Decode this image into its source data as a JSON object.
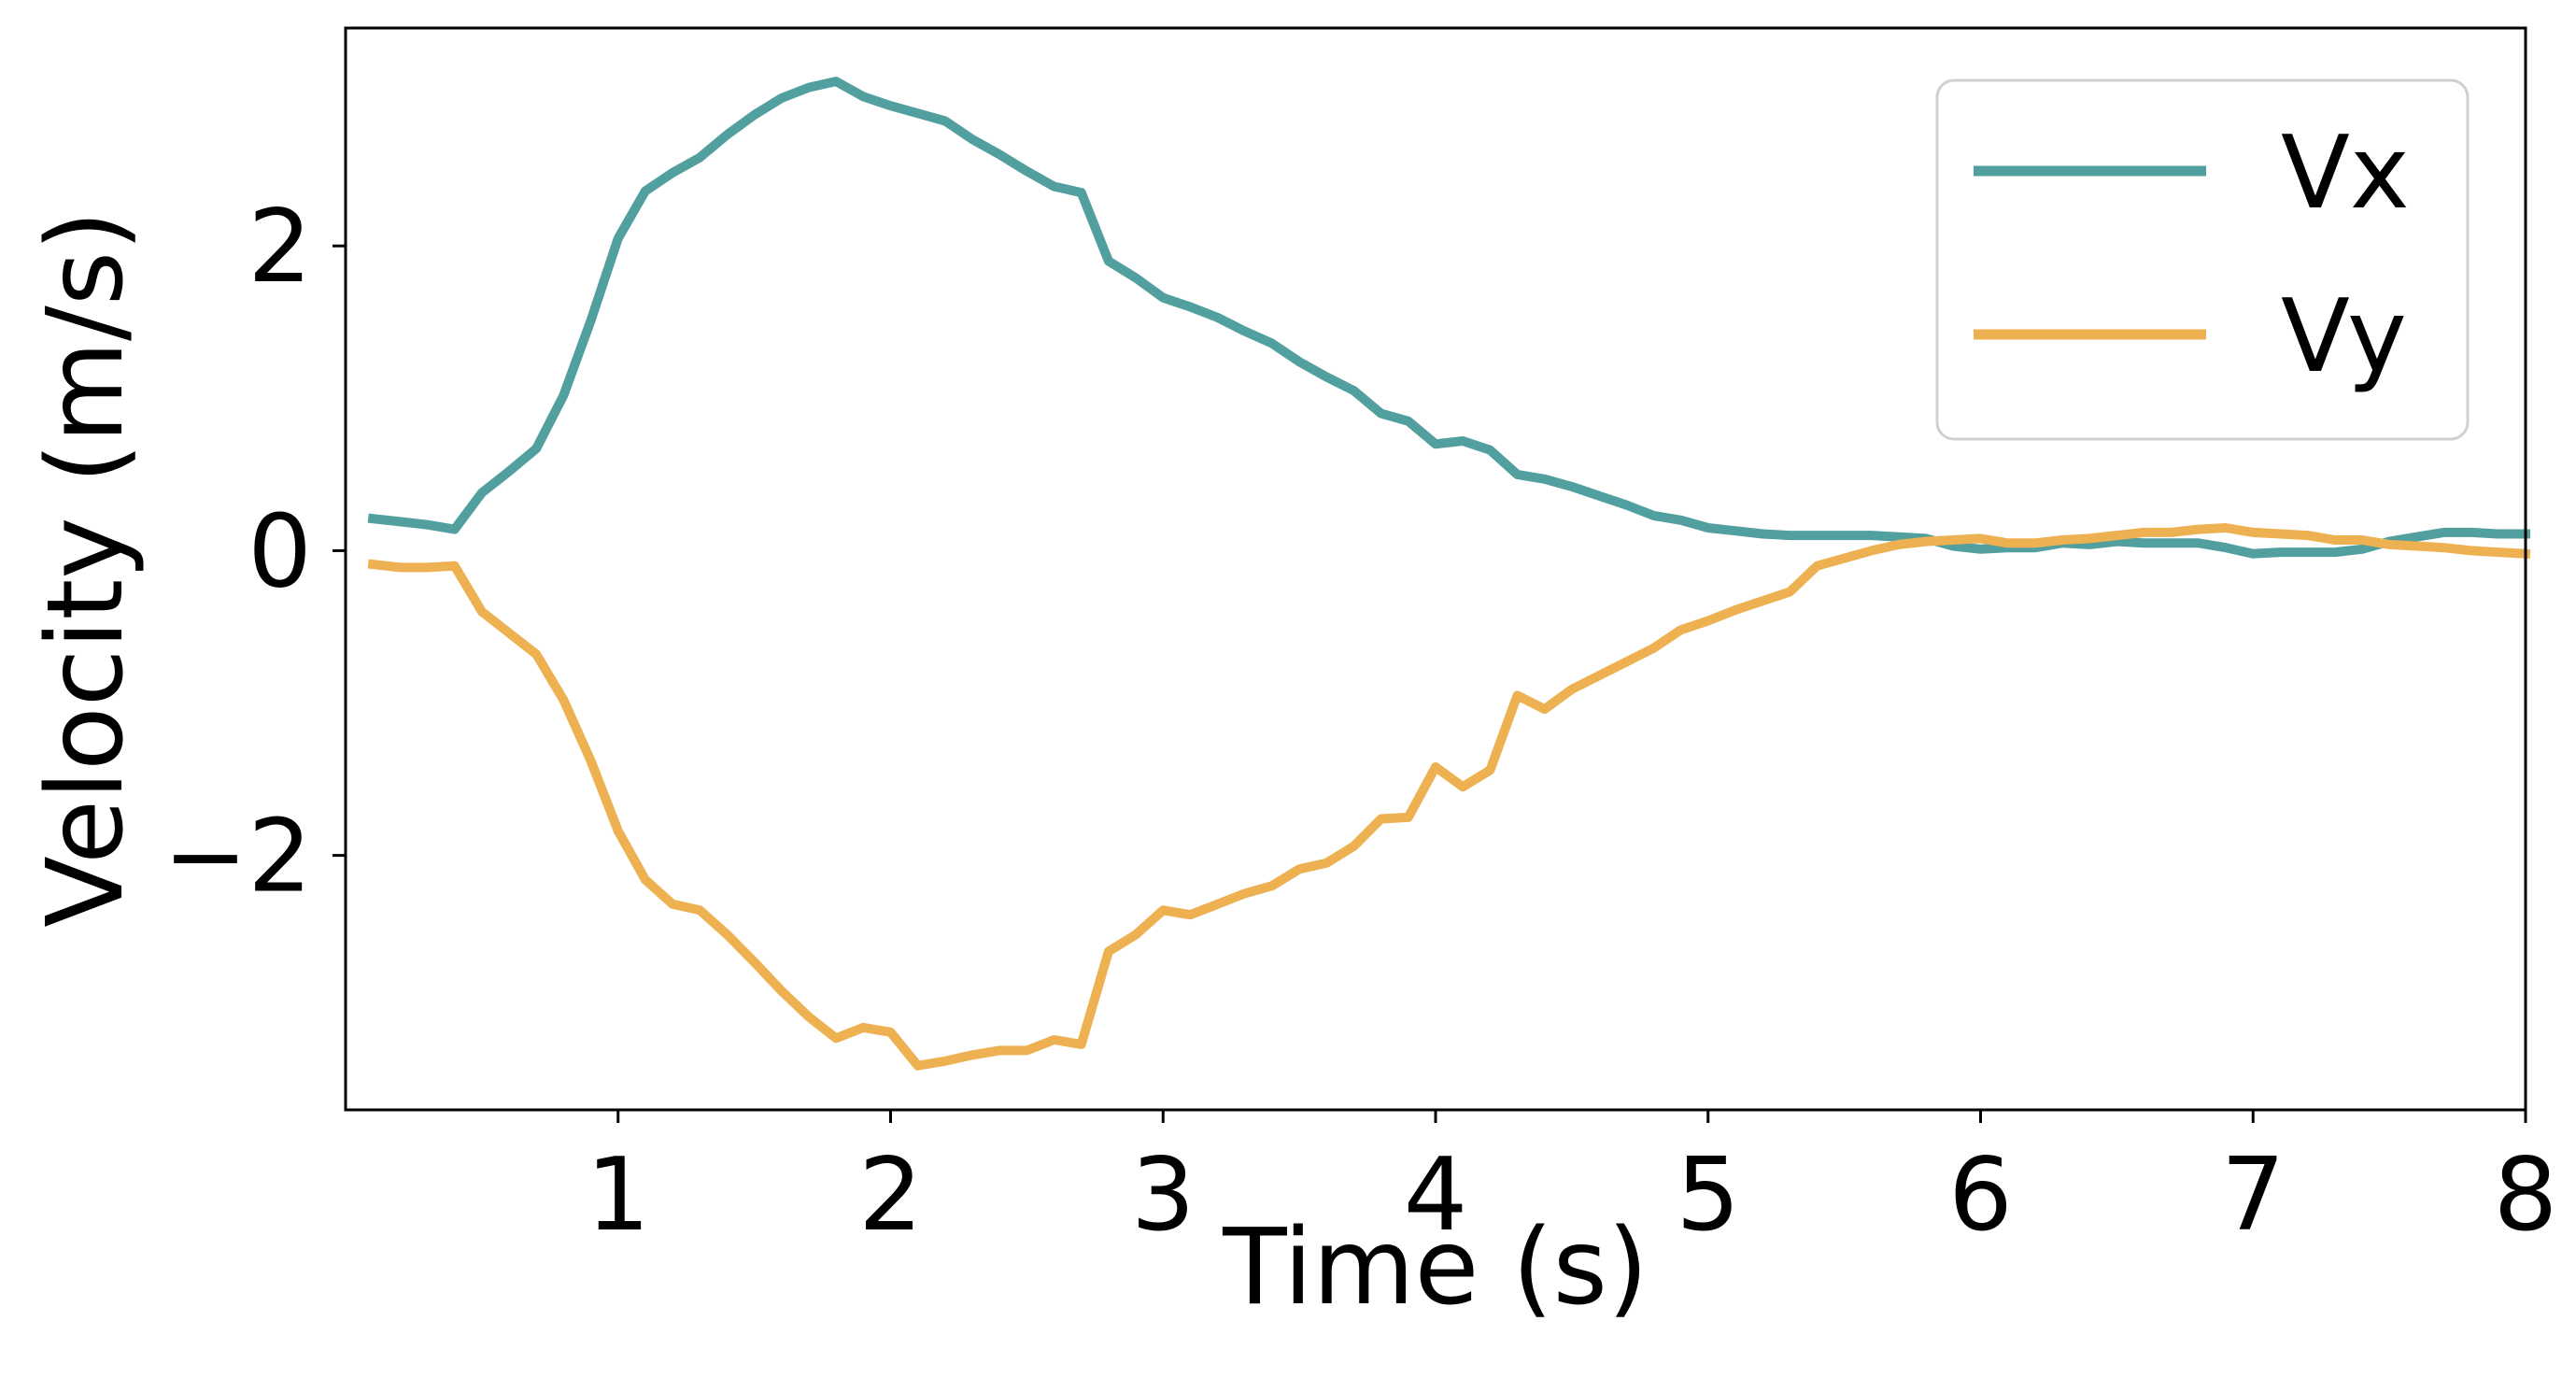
{
  "chart_data": {
    "type": "line",
    "xlabel": "Time (s)",
    "ylabel": "Velocity (m/s)",
    "xlim": [
      0,
      8
    ],
    "ylim": [
      -3.67,
      3.43
    ],
    "xticks": [
      "1",
      "2",
      "3",
      "4",
      "5",
      "6",
      "7",
      "8"
    ],
    "yticks": [
      "2",
      "0",
      "−2"
    ],
    "grid": false,
    "legend_position": "top-right",
    "series": [
      {
        "name": "Vx",
        "color": "#529f9f",
        "x": [
          0.1,
          0.2,
          0.3,
          0.4,
          0.5,
          0.6,
          0.7,
          0.8,
          0.9,
          1.0,
          1.1,
          1.2,
          1.3,
          1.4,
          1.5,
          1.6,
          1.7,
          1.8,
          1.9,
          2.0,
          2.1,
          2.2,
          2.3,
          2.4,
          2.5,
          2.6,
          2.7,
          2.8,
          2.9,
          3.0,
          3.1,
          3.2,
          3.3,
          3.4,
          3.5,
          3.6,
          3.7,
          3.8,
          3.9,
          4.0,
          4.1,
          4.2,
          4.3,
          4.4,
          4.5,
          4.6,
          4.7,
          4.8,
          4.9,
          5.0,
          5.1,
          5.2,
          5.3,
          5.4,
          5.5,
          5.6,
          5.7,
          5.8,
          5.9,
          6.0,
          6.1,
          6.2,
          6.3,
          6.4,
          6.5,
          6.6,
          6.7,
          6.8,
          6.9,
          7.0,
          7.1,
          7.2,
          7.3,
          7.4,
          7.5,
          7.6,
          7.7,
          7.8,
          7.9,
          8.0
        ],
        "values": [
          0.21,
          0.19,
          0.17,
          0.14,
          0.38,
          0.52,
          0.67,
          1.02,
          1.51,
          2.05,
          2.36,
          2.48,
          2.58,
          2.73,
          2.86,
          2.97,
          3.04,
          3.08,
          2.98,
          2.92,
          2.87,
          2.82,
          2.7,
          2.6,
          2.49,
          2.39,
          2.35,
          1.9,
          1.79,
          1.66,
          1.6,
          1.53,
          1.44,
          1.36,
          1.24,
          1.14,
          1.05,
          0.9,
          0.85,
          0.7,
          0.72,
          0.66,
          0.5,
          0.47,
          0.42,
          0.36,
          0.3,
          0.23,
          0.2,
          0.15,
          0.13,
          0.11,
          0.1,
          0.1,
          0.1,
          0.1,
          0.09,
          0.08,
          0.03,
          0.01,
          0.02,
          0.02,
          0.05,
          0.04,
          0.06,
          0.05,
          0.05,
          0.05,
          0.02,
          -0.02,
          -0.01,
          -0.01,
          -0.01,
          0.01,
          0.06,
          0.09,
          0.12,
          0.12,
          0.11,
          0.11
        ]
      },
      {
        "name": "Vy",
        "color": "#eeb151",
        "x": [
          0.1,
          0.2,
          0.3,
          0.4,
          0.5,
          0.6,
          0.7,
          0.8,
          0.9,
          1.0,
          1.1,
          1.2,
          1.3,
          1.4,
          1.5,
          1.6,
          1.7,
          1.8,
          1.9,
          2.0,
          2.1,
          2.2,
          2.3,
          2.4,
          2.5,
          2.6,
          2.7,
          2.8,
          2.9,
          3.0,
          3.1,
          3.2,
          3.3,
          3.4,
          3.5,
          3.6,
          3.7,
          3.8,
          3.9,
          4.0,
          4.1,
          4.2,
          4.3,
          4.4,
          4.5,
          4.6,
          4.7,
          4.8,
          4.9,
          5.0,
          5.1,
          5.2,
          5.3,
          5.4,
          5.5,
          5.6,
          5.7,
          5.8,
          5.9,
          6.0,
          6.1,
          6.2,
          6.3,
          6.4,
          6.5,
          6.6,
          6.7,
          6.8,
          6.9,
          7.0,
          7.1,
          7.2,
          7.3,
          7.4,
          7.5,
          7.6,
          7.7,
          7.8,
          7.9,
          8.0
        ],
        "values": [
          -0.09,
          -0.11,
          -0.11,
          -0.1,
          -0.4,
          -0.54,
          -0.68,
          -0.98,
          -1.38,
          -1.84,
          -2.16,
          -2.32,
          -2.36,
          -2.52,
          -2.7,
          -2.89,
          -3.06,
          -3.2,
          -3.13,
          -3.16,
          -3.38,
          -3.35,
          -3.31,
          -3.28,
          -3.28,
          -3.21,
          -3.24,
          -2.63,
          -2.52,
          -2.36,
          -2.39,
          -2.32,
          -2.25,
          -2.2,
          -2.09,
          -2.05,
          -1.94,
          -1.76,
          -1.75,
          -1.42,
          -1.55,
          -1.44,
          -0.95,
          -1.04,
          -0.91,
          -0.82,
          -0.73,
          -0.64,
          -0.52,
          -0.46,
          -0.39,
          -0.33,
          -0.27,
          -0.1,
          -0.05,
          0.0,
          0.04,
          0.06,
          0.07,
          0.08,
          0.05,
          0.05,
          0.07,
          0.08,
          0.1,
          0.12,
          0.12,
          0.14,
          0.15,
          0.12,
          0.11,
          0.1,
          0.07,
          0.07,
          0.04,
          0.03,
          0.02,
          0.0,
          -0.01,
          -0.02
        ]
      }
    ]
  }
}
